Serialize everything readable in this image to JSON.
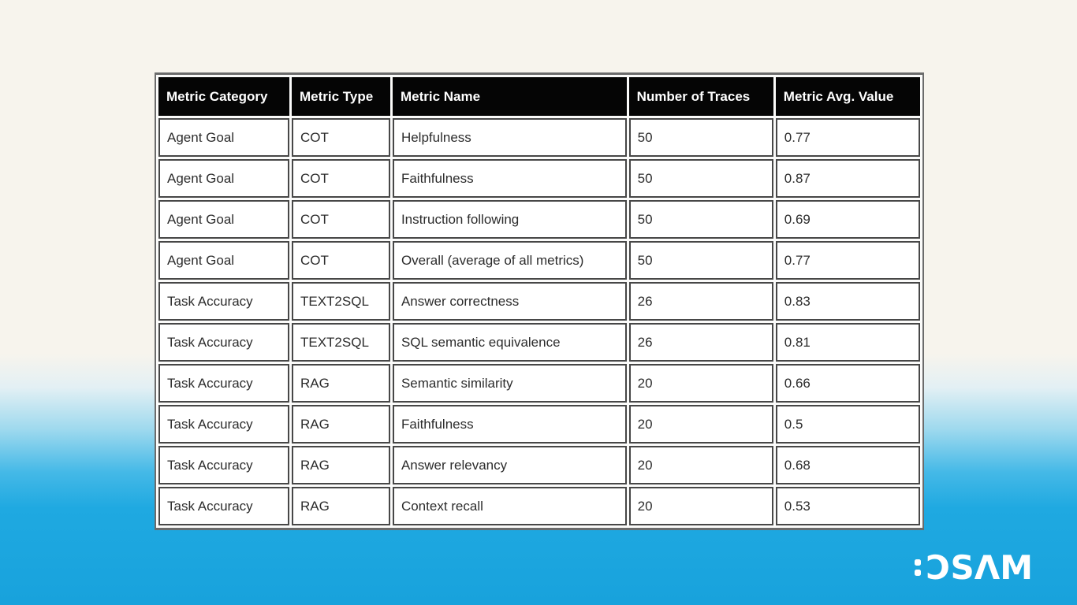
{
  "table": {
    "headers": [
      "Metric Category",
      "Metric Type",
      "Metric Name",
      "Number of Traces",
      "Metric Avg. Value"
    ],
    "rows": [
      [
        "Agent Goal",
        "COT",
        "Helpfulness",
        "50",
        "0.77"
      ],
      [
        "Agent Goal",
        "COT",
        "Faithfulness",
        "50",
        "0.87"
      ],
      [
        "Agent Goal",
        "COT",
        "Instruction following",
        "50",
        "0.69"
      ],
      [
        "Agent Goal",
        "COT",
        "Overall (average of all metrics)",
        "50",
        "0.77"
      ],
      [
        "Task Accuracy",
        "TEXT2SQL",
        "Answer correctness",
        "26",
        "0.83"
      ],
      [
        "Task Accuracy",
        "TEXT2SQL",
        "SQL semantic equivalence",
        "26",
        "0.81"
      ],
      [
        "Task Accuracy",
        "RAG",
        "Semantic similarity",
        "20",
        "0.66"
      ],
      [
        "Task Accuracy",
        "RAG",
        "Faithfulness",
        "20",
        "0.5"
      ],
      [
        "Task Accuracy",
        "RAG",
        "Answer relevancy",
        "20",
        "0.68"
      ],
      [
        "Task Accuracy",
        "RAG",
        "Context recall",
        "20",
        "0.53"
      ]
    ]
  },
  "chart_data": {
    "type": "table",
    "columns": [
      "Metric Category",
      "Metric Type",
      "Metric Name",
      "Number of Traces",
      "Metric Avg. Value"
    ],
    "rows": [
      [
        "Agent Goal",
        "COT",
        "Helpfulness",
        50,
        0.77
      ],
      [
        "Agent Goal",
        "COT",
        "Faithfulness",
        50,
        0.87
      ],
      [
        "Agent Goal",
        "COT",
        "Instruction following",
        50,
        0.69
      ],
      [
        "Agent Goal",
        "COT",
        "Overall (average of all metrics)",
        50,
        0.77
      ],
      [
        "Task Accuracy",
        "TEXT2SQL",
        "Answer correctness",
        26,
        0.83
      ],
      [
        "Task Accuracy",
        "TEXT2SQL",
        "SQL semantic equivalence",
        26,
        0.81
      ],
      [
        "Task Accuracy",
        "RAG",
        "Semantic similarity",
        20,
        0.66
      ],
      [
        "Task Accuracy",
        "RAG",
        "Faithfulness",
        20,
        0.5
      ],
      [
        "Task Accuracy",
        "RAG",
        "Answer relevancy",
        20,
        0.68
      ],
      [
        "Task Accuracy",
        "RAG",
        "Context recall",
        20,
        0.53
      ]
    ],
    "title": ""
  },
  "logo": {
    "text": "ƆSΛM"
  },
  "colors": {
    "header_bg": "#050505",
    "header_text": "#ffffff",
    "cell_border": "#474747",
    "cell_text": "#2c2c2c",
    "background_top": "#f7f4ed",
    "background_bottom": "#18a2dc",
    "logo_text": "#ffffff"
  }
}
